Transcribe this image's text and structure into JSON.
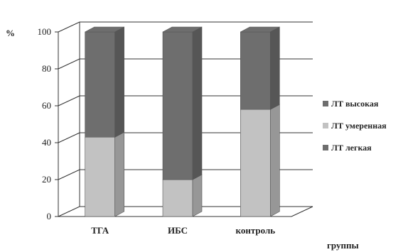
{
  "chart_data": {
    "type": "bar",
    "stacked": true,
    "three_d": true,
    "categories": [
      "ТГА",
      "ИБС",
      "контроль"
    ],
    "series": [
      {
        "name": "ЛТ легкая",
        "values": [
          0,
          0,
          0
        ],
        "color": "#6e6e6e"
      },
      {
        "name": "ЛТ умеренная",
        "values": [
          43,
          20,
          58
        ],
        "color": "#c2c2c2"
      },
      {
        "name": "ЛТ высокая",
        "values": [
          57,
          80,
          42
        ],
        "color": "#6e6e6e"
      }
    ],
    "ylabel": "%",
    "xlabel": "группы",
    "ylim": [
      0,
      100
    ],
    "yticks": [
      0,
      20,
      40,
      60,
      80,
      100
    ],
    "grid": true,
    "legend_position": "right",
    "legend_order": [
      "ЛТ высокая",
      "ЛТ умеренная",
      "ЛТ легкая"
    ]
  }
}
